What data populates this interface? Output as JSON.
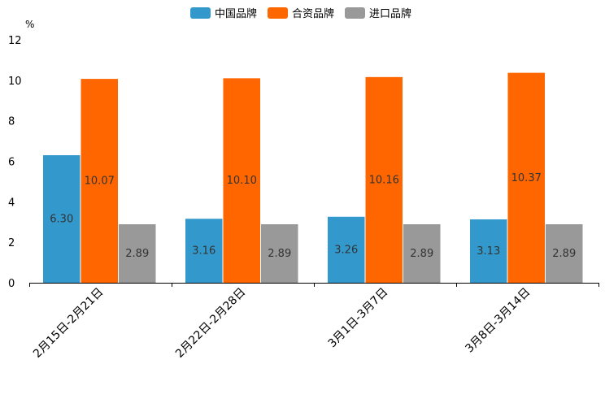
{
  "chart_data": {
    "type": "bar",
    "title": "",
    "xlabel": "",
    "ylabel": "%",
    "ylim": [
      0,
      12
    ],
    "yticks": [
      0,
      2,
      4,
      6,
      8,
      10,
      12
    ],
    "categories": [
      "2月15日-2月21日",
      "2月22日-2月28日",
      "3月1日-3月7日",
      "3月8日-3月14日"
    ],
    "series": [
      {
        "name": "中国品牌",
        "color": "#3399cc",
        "values": [
          6.3,
          3.16,
          3.26,
          3.13
        ],
        "labels": [
          "6.30",
          "3.16",
          "3.26",
          "3.13"
        ]
      },
      {
        "name": "合资品牌",
        "color": "#ff6600",
        "values": [
          10.07,
          10.1,
          10.16,
          10.37
        ],
        "labels": [
          "10.07",
          "10.10",
          "10.16",
          "10.37"
        ]
      },
      {
        "name": "进口品牌",
        "color": "#999999",
        "values": [
          2.89,
          2.89,
          2.89,
          2.89
        ],
        "labels": [
          "2.89",
          "2.89",
          "2.89",
          "2.89"
        ]
      }
    ],
    "legend_position": "top-center",
    "grid": false
  }
}
